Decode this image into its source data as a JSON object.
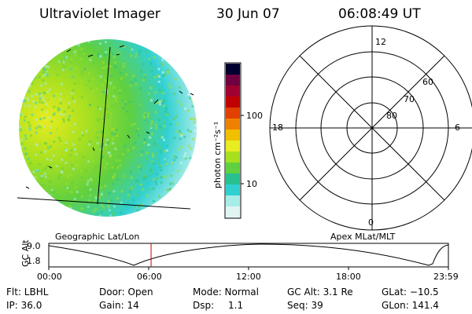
{
  "header": {
    "instrument": "Ultraviolet Imager",
    "date": "30 Jun 07",
    "time": "06:08:49 UT"
  },
  "colorbar": {
    "unit_label": "photon cm⁻²s⁻¹",
    "ticks": [
      "100",
      "10"
    ],
    "colors": [
      "#e0f4f4",
      "#a8ece8",
      "#30d0d0",
      "#28c090",
      "#60d040",
      "#a8e020",
      "#e8ec20",
      "#f0c000",
      "#f08000",
      "#e04000",
      "#c00000",
      "#a00030",
      "#700040",
      "#000030"
    ]
  },
  "polar_plot": {
    "mlt_labels": [
      "12",
      "18",
      "6",
      "0"
    ],
    "lat_labels": [
      "60",
      "70",
      "80"
    ]
  },
  "timeline": {
    "left_title": "Geographic Lat/Lon",
    "right_title": "Apex MLat/MLT",
    "axis_label": "GC Alt",
    "y_ticks": [
      "9.0",
      "1.8"
    ],
    "time_ticks": [
      "00:00",
      "06:00",
      "12:00",
      "18:00",
      "23:59"
    ],
    "current_time_fraction": 0.256
  },
  "info": {
    "row1": [
      "Flt: LBHL",
      "Door: Open",
      "Mode: Normal",
      "GC Alt: 3.1 Re",
      "GLat: −10.5"
    ],
    "row2": [
      "IP: 36.0",
      "Gain: 14",
      "Dsp:",
      "1.1",
      "Seq: 39",
      "GLon: 141.4"
    ]
  }
}
